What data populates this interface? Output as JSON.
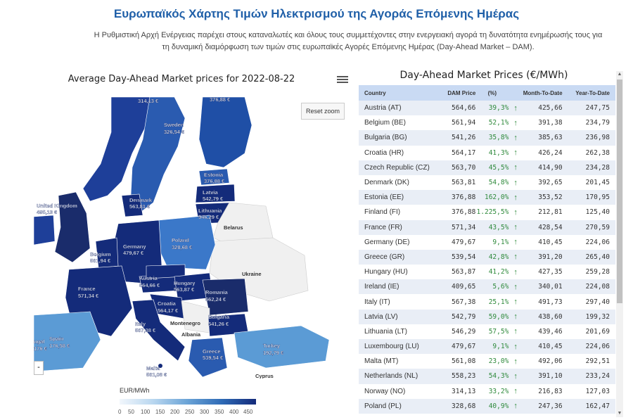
{
  "header": {
    "title": "Ευρωπαϊκός Χάρτης Τιμών Ηλεκτρισμού της Αγοράς Επόμενης Ημέρας",
    "intro_line1": "Η Ρυθμιστική Αρχή Ενέργειας παρέχει στους καταναλωτές και όλους τους συμμετέχοντες στην ενεργειακή αγορά τη δυνατότητα ενημέρωσής τους για",
    "intro_line2": "τη δυναμική διαμόρφωση των τιμών στις ευρωπαϊκές Αγορές Επόμενης Ημέρας (Day-Ahead Market – DAM)."
  },
  "map": {
    "title": "Average Day-Ahead Market prices for 2022-08-22",
    "reset_label": "Reset zoom",
    "zoom_out_label": "-",
    "legend_title": "EUR/MWh",
    "legend_ticks": [
      "0",
      "50",
      "100",
      "150",
      "200",
      "250",
      "300",
      "350",
      "400",
      "450"
    ],
    "labels": {
      "norway_top": "314,13 €",
      "finland_top": "376,88 €",
      "sweden": "Sweden",
      "sweden_val": "326,54 €",
      "estonia": "Estonia",
      "estonia_val": "376,88 €",
      "latvia": "Latvia",
      "latvia_val": "542,79 €",
      "lithuania": "Lithuania",
      "lithuania_val": "546,29 €",
      "denmark": "Denmark",
      "denmark_val": "563,81 €",
      "uk": "United Kingdom",
      "uk_val": "495,13 €",
      "belarus": "Belarus",
      "poland": "Poland",
      "poland_val": "328,68 €",
      "germany": "Germany",
      "germany_val": "479,67 €",
      "belgium": "Belgium",
      "belgium_val": "561,94 €",
      "ukraine": "Ukraine",
      "austria": "Austria",
      "austria_val": "564,66 €",
      "hungary": "Hungary",
      "hungary_val": "563,87 €",
      "romania": "Romania",
      "romania_val": "562,24 €",
      "france": "France",
      "france_val": "571,34 €",
      "croatia": "Croatia",
      "croatia_val": "564,17 €",
      "bulgaria": "Bulgaria",
      "bulgaria_val": "541,26 €",
      "italy": "Italy",
      "italy_val": "567,38 €",
      "montenegro": "Montenegro",
      "albania": "Albania",
      "spain": "Spain",
      "spain_val": "176,58 €",
      "portugal": "ugal",
      "portugal_val": "176 €",
      "greece": "Greece",
      "greece_val": "539,54 €",
      "turkey": "Turkey",
      "turkey_val": "192,79 €",
      "malta": "Malta",
      "malta_val": "561,08 €",
      "cyprus": "Cyprus"
    }
  },
  "table": {
    "title": "Day-Ahead Market Prices (€/MWh)",
    "columns": [
      "Country",
      "DAM Price",
      "(%)",
      "Month-To-Date",
      "Year-To-Date"
    ],
    "rows": [
      {
        "country": "Austria (AT)",
        "dam": "564,66",
        "pct": "39,3%",
        "mtd": "425,66",
        "ytd": "247,75"
      },
      {
        "country": "Belgium (BE)",
        "dam": "561,94",
        "pct": "52,1%",
        "mtd": "391,38",
        "ytd": "234,79"
      },
      {
        "country": "Bulgaria (BG)",
        "dam": "541,26",
        "pct": "35,8%",
        "mtd": "385,63",
        "ytd": "236,98"
      },
      {
        "country": "Croatia (HR)",
        "dam": "564,17",
        "pct": "41,3%",
        "mtd": "426,24",
        "ytd": "262,38"
      },
      {
        "country": "Czech Republic (CZ)",
        "dam": "563,70",
        "pct": "45,5%",
        "mtd": "414,90",
        "ytd": "234,28"
      },
      {
        "country": "Denmark (DK)",
        "dam": "563,81",
        "pct": "54,8%",
        "mtd": "392,65",
        "ytd": "201,45"
      },
      {
        "country": "Estonia (EE)",
        "dam": "376,88",
        "pct": "162,0%",
        "mtd": "353,52",
        "ytd": "170,95"
      },
      {
        "country": "Finland (FI)",
        "dam": "376,88",
        "pct": "1.225,5%",
        "mtd": "212,81",
        "ytd": "125,40"
      },
      {
        "country": "France (FR)",
        "dam": "571,34",
        "pct": "43,5%",
        "mtd": "428,54",
        "ytd": "270,59"
      },
      {
        "country": "Germany (DE)",
        "dam": "479,67",
        "pct": "9,1%",
        "mtd": "410,45",
        "ytd": "224,06"
      },
      {
        "country": "Greece (GR)",
        "dam": "539,54",
        "pct": "42,8%",
        "mtd": "391,20",
        "ytd": "265,40"
      },
      {
        "country": "Hungary (HU)",
        "dam": "563,87",
        "pct": "41,2%",
        "mtd": "427,35",
        "ytd": "259,28"
      },
      {
        "country": "Ireland (IE)",
        "dam": "409,65",
        "pct": "5,6%",
        "mtd": "340,01",
        "ytd": "224,08"
      },
      {
        "country": "Italy (IT)",
        "dam": "567,38",
        "pct": "25,1%",
        "mtd": "491,73",
        "ytd": "297,40"
      },
      {
        "country": "Latvia (LV)",
        "dam": "542,79",
        "pct": "59,0%",
        "mtd": "438,60",
        "ytd": "199,32"
      },
      {
        "country": "Lithuania (LT)",
        "dam": "546,29",
        "pct": "57,5%",
        "mtd": "439,46",
        "ytd": "201,69"
      },
      {
        "country": "Luxembourg (LU)",
        "dam": "479,67",
        "pct": "9,1%",
        "mtd": "410,45",
        "ytd": "224,06"
      },
      {
        "country": "Malta (MT)",
        "dam": "561,08",
        "pct": "23,0%",
        "mtd": "492,06",
        "ytd": "292,51"
      },
      {
        "country": "Netherlands (NL)",
        "dam": "558,23",
        "pct": "54,3%",
        "mtd": "391,10",
        "ytd": "233,24"
      },
      {
        "country": "Norway (NO)",
        "dam": "314,13",
        "pct": "33,2%",
        "mtd": "216,83",
        "ytd": "127,03"
      },
      {
        "country": "Poland (PL)",
        "dam": "328,68",
        "pct": "40,9%",
        "mtd": "247,36",
        "ytd": "162,47"
      }
    ],
    "arrow_icon": "↑"
  },
  "colors": {
    "title_blue": "#1f5fa8",
    "dark_navy": "#1a2c6b",
    "mid_blue": "#2e6ab6",
    "light_blue": "#5b9bd5",
    "no_data": "#f0f0f0",
    "up_green": "#2f8a3c"
  }
}
